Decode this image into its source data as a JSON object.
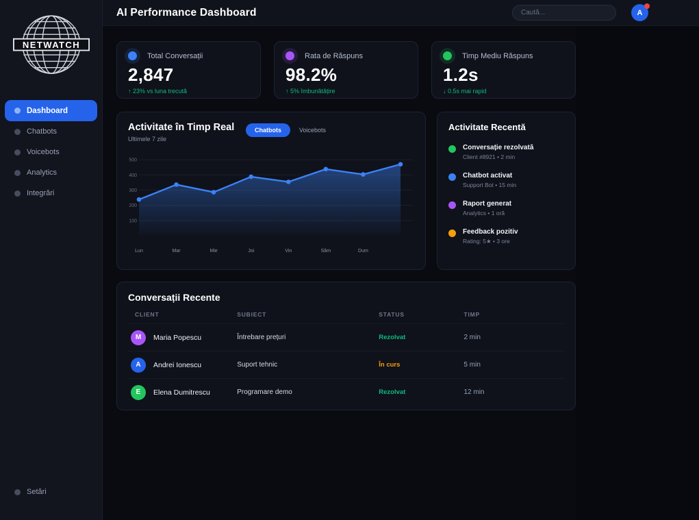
{
  "topbar": {
    "title": "AI Performance Dashboard",
    "search_placeholder": "Caută...",
    "avatar_initial": "A",
    "avatar_color": "#2563eb",
    "notification_color": "#ef4444"
  },
  "sidebar": {
    "brand": "NETWATCH",
    "items": [
      {
        "label": "Dashboard",
        "active": true
      },
      {
        "label": "Chatbots",
        "active": false
      },
      {
        "label": "Voicebots",
        "active": false
      },
      {
        "label": "Analytics",
        "active": false
      },
      {
        "label": "Integrări",
        "active": false
      }
    ],
    "footer_item": {
      "label": "Setări"
    },
    "accent": "#2563eb"
  },
  "stats": [
    {
      "label": "Total Conversații",
      "value": "2,847",
      "delta": "↑ 23% vs luna trecută",
      "color": "#3b82f6"
    },
    {
      "label": "Rata de Răspuns",
      "value": "98.2%",
      "delta": "↑ 5% îmbunătățire",
      "color": "#a855f7"
    },
    {
      "label": "Timp Mediu Răspuns",
      "value": "1.2s",
      "delta": "↓ 0.5s mai rapid",
      "color": "#22c55e"
    }
  ],
  "chart_card": {
    "title": "Activitate în Timp Real",
    "subtitle": "Ultimele 7 zile",
    "tabs": [
      {
        "label": "Chatbots",
        "active": true
      },
      {
        "label": "Voicebots",
        "active": false
      }
    ]
  },
  "chart_data": {
    "type": "line",
    "categories": [
      "Lun",
      "Mar",
      "Mie",
      "Joi",
      "Vin",
      "Sâm",
      "Dum"
    ],
    "values": [
      238,
      336,
      286,
      388,
      354,
      438,
      403,
      470
    ],
    "note": "8 points plotted; 8th point reaches right edge beyond last axis label",
    "title": "Activitate în Timp Real",
    "xlabel": "",
    "ylabel": "",
    "ylim": [
      0,
      550
    ],
    "yticks": [
      100,
      200,
      300,
      400,
      500
    ],
    "grid": true,
    "line_color": "#3b82f6",
    "area_fill": true
  },
  "activity": {
    "title": "Activitate Recentă",
    "items": [
      {
        "title": "Conversație rezolvată",
        "meta": "Client #8921 • 2 min",
        "color": "#22c55e"
      },
      {
        "title": "Chatbot activat",
        "meta": "Support Bot • 15 min",
        "color": "#3b82f6"
      },
      {
        "title": "Raport generat",
        "meta": "Analytics • 1 oră",
        "color": "#a855f7"
      },
      {
        "title": "Feedback pozitiv",
        "meta": "Rating: 5★ • 3 ore",
        "color": "#f59e0b"
      }
    ]
  },
  "table": {
    "title": "Conversații Recente",
    "columns": [
      "Client",
      "Subiect",
      "Status",
      "Timp"
    ],
    "rows": [
      {
        "initial": "M",
        "avatar_color": "#a855f7",
        "name": "Maria Popescu",
        "subject": "Întrebare prețuri",
        "status": "Rezolvat",
        "status_color": "#10b981",
        "time": "2 min"
      },
      {
        "initial": "A",
        "avatar_color": "#2563eb",
        "name": "Andrei Ionescu",
        "subject": "Suport tehnic",
        "status": "În curs",
        "status_color": "#f59e0b",
        "time": "5 min"
      },
      {
        "initial": "E",
        "avatar_color": "#22c55e",
        "name": "Elena Dumitrescu",
        "subject": "Programare demo",
        "status": "Rezolvat",
        "status_color": "#10b981",
        "time": "12 min"
      }
    ]
  }
}
